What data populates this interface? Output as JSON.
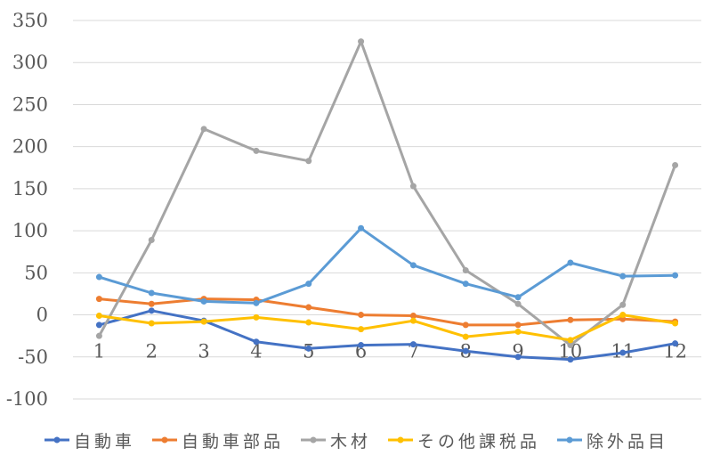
{
  "chart_data": {
    "type": "line",
    "title": "",
    "xlabel": "",
    "ylabel": "",
    "x": [
      1,
      2,
      3,
      4,
      5,
      6,
      7,
      8,
      9,
      10,
      11,
      12
    ],
    "categories": [
      "1",
      "2",
      "3",
      "4",
      "5",
      "6",
      "7",
      "8",
      "9",
      "10",
      "11",
      "12"
    ],
    "ylim": [
      -100,
      350
    ],
    "yticks": [
      350,
      300,
      250,
      200,
      150,
      100,
      50,
      0,
      -50,
      -100
    ],
    "grid": true,
    "legend_position": "bottom",
    "series": [
      {
        "name": "自動車",
        "color": "#4472C4",
        "values": [
          -12,
          5,
          -7,
          -32,
          -40,
          -36,
          -35,
          -43,
          -50,
          -53,
          -45,
          -34
        ]
      },
      {
        "name": "自動車部品",
        "color": "#ED7D31",
        "values": [
          19,
          13,
          19,
          18,
          9,
          0,
          -1,
          -12,
          -12,
          -6,
          -5,
          -8
        ]
      },
      {
        "name": "木材",
        "color": "#A5A5A5",
        "values": [
          -25,
          89,
          221,
          195,
          183,
          325,
          153,
          53,
          13,
          -36,
          12,
          178
        ]
      },
      {
        "name": "その他課税品",
        "color": "#FFC000",
        "values": [
          -1,
          -10,
          -8,
          -3,
          -9,
          -17,
          -7,
          -26,
          -20,
          -30,
          0,
          -10
        ]
      },
      {
        "name": "除外品目",
        "color": "#5B9BD5",
        "values": [
          45,
          26,
          16,
          14,
          37,
          103,
          59,
          37,
          21,
          62,
          46,
          47
        ]
      }
    ]
  },
  "legend": {
    "items": [
      {
        "label": "自動車",
        "color": "#4472C4"
      },
      {
        "label": "自動車部品",
        "color": "#ED7D31"
      },
      {
        "label": "木材",
        "color": "#A5A5A5"
      },
      {
        "label": "その他課税品",
        "color": "#FFC000"
      },
      {
        "label": "除外品目",
        "color": "#5B9BD5"
      }
    ]
  }
}
